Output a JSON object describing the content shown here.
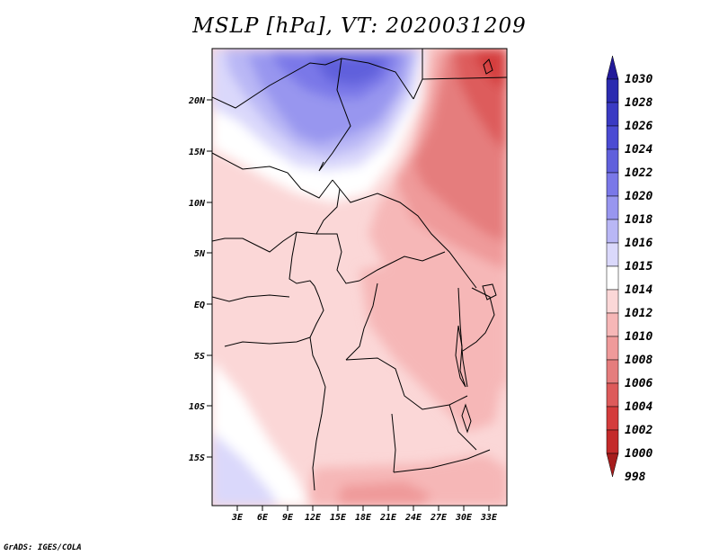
{
  "title": "MSLP [hPa], VT: 2020031209",
  "credit": "GrADS: IGES/COLA",
  "map": {
    "lat_labels": [
      "20N",
      "15N",
      "10N",
      "5N",
      "EQ",
      "5S",
      "10S",
      "15S"
    ],
    "lon_labels": [
      "3E",
      "6E",
      "9E",
      "12E",
      "15E",
      "18E",
      "21E",
      "24E",
      "27E",
      "30E",
      "33E"
    ]
  },
  "colorbar": {
    "levels": [
      "1030",
      "1028",
      "1026",
      "1024",
      "1022",
      "1020",
      "1018",
      "1016",
      "1015",
      "1014",
      "1012",
      "1010",
      "1008",
      "1006",
      "1004",
      "1002",
      "1000",
      "998"
    ],
    "colors": [
      "#221a99",
      "#2b2bb0",
      "#3a3ac3",
      "#4b4bd3",
      "#6060dc",
      "#7a78e8",
      "#9896ef",
      "#b9b7f5",
      "#dad8fb",
      "#ffffff",
      "#fbd7d7",
      "#f6b7b7",
      "#ef9a9a",
      "#e57d7d",
      "#dd5b5b",
      "#d43c3c",
      "#c42a2a",
      "#a61c1c"
    ]
  }
}
